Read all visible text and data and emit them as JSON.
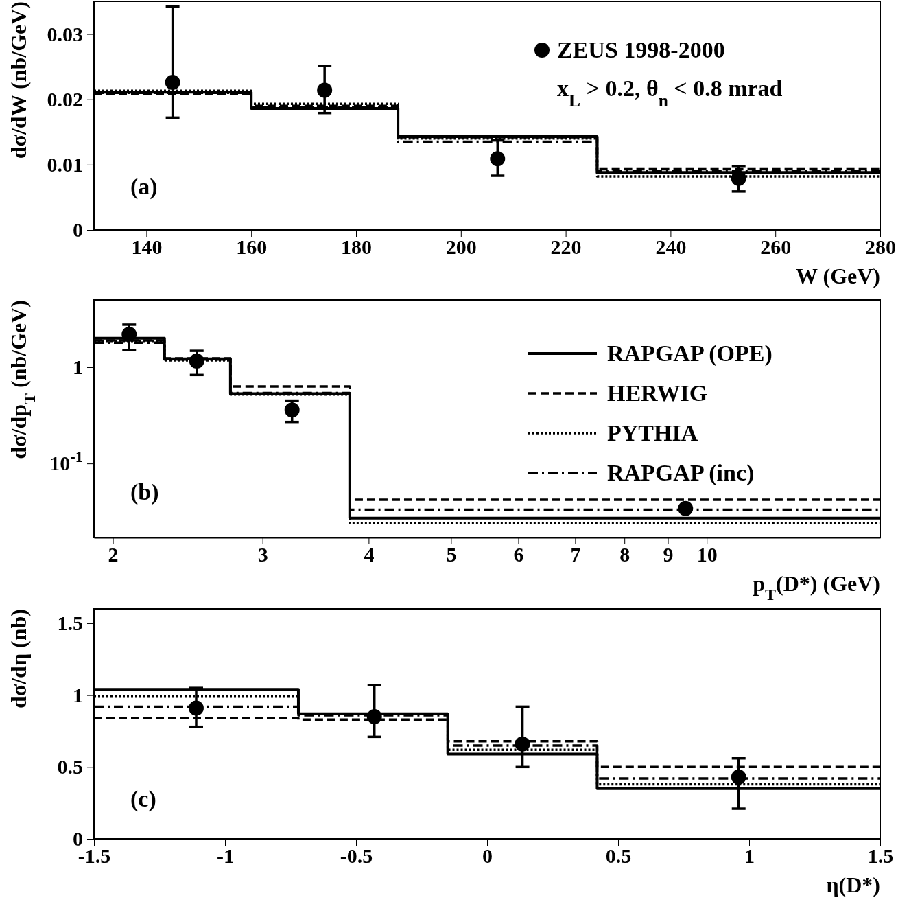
{
  "chart_data": [
    {
      "type": "step",
      "xlabel": "W (GeV)",
      "ylabel": "dσ/dW (nb/GeV)",
      "xlim": [
        130,
        280
      ],
      "ylim": [
        0,
        0.035
      ],
      "xticks": [
        140,
        160,
        180,
        200,
        220,
        240,
        260,
        280
      ],
      "yticks": [
        0,
        0.01,
        0.02,
        0.03
      ],
      "grid": false,
      "legend": "top right",
      "annotations": [
        "x$_{L}$ > 0.2, θ$_{n}$ < 0.8 mrad",
        "(a)"
      ],
      "series": [
        {
          "type": "scatter",
          "name": "ZEUS 1998-2000",
          "color": "#000000",
          "marker": "circle",
          "x": [
            145,
            174,
            207,
            253
          ],
          "values": [
            0.0226,
            0.0214,
            0.0109,
            0.0079
          ],
          "errors": [
            [
              0.0172,
              0.0342
            ],
            [
              0.0179,
              0.0251
            ],
            [
              0.0083,
              0.0137
            ],
            [
              0.0059,
              0.0097
            ]
          ]
        },
        {
          "color": "#000000",
          "line_style": "solid",
          "marker": "none",
          "x": [
            130,
            160,
            188,
            226,
            280
          ],
          "values": [
            0.0211,
            0.0186,
            0.0143,
            0.0088,
            0.0088
          ]
        },
        {
          "color": "#000000",
          "line_style": "dashed",
          "marker": "none",
          "x": [
            130,
            160,
            188,
            226,
            280
          ],
          "values": [
            0.0208,
            0.019,
            0.0142,
            0.0093,
            0.0093
          ]
        },
        {
          "color": "#000000",
          "line_style": "dotted",
          "marker": "none",
          "x": [
            130,
            160,
            188,
            226,
            280
          ],
          "values": [
            0.0213,
            0.0193,
            0.014,
            0.0082,
            0.0082
          ]
        },
        {
          "color": "#000000",
          "line_style": "dashdot",
          "marker": "none",
          "x": [
            130,
            160,
            188,
            226,
            280
          ],
          "values": [
            0.021,
            0.0188,
            0.0135,
            0.009,
            0.009
          ]
        }
      ]
    },
    {
      "type": "step",
      "xlabel": "p$_{T}$(D*)   (GeV)",
      "ylabel": "dσ/dp$_{T}$ (nb/GeV)",
      "log": "xy",
      "xlim": [
        1.9,
        16
      ],
      "ylim": [
        0.017,
        5
      ],
      "xticks": [
        2,
        3,
        4,
        5,
        6,
        7,
        8,
        9,
        10
      ],
      "yticks": [
        {
          "value": 0.1,
          "label": "10$^{-1}$"
        },
        1
      ],
      "grid": false,
      "legend": "right",
      "annotations": [
        "(b)"
      ],
      "series": [
        {
          "type": "scatter",
          "color": "#000000",
          "marker": "circle",
          "x": [
            2.09,
            2.51,
            3.25,
            9.44
          ],
          "values": [
            2.2,
            1.16,
            0.36,
            0.034
          ],
          "errors": [
            [
              1.51,
              2.77
            ],
            [
              0.83,
              1.48
            ],
            [
              0.27,
              0.45
            ],
            null
          ]
        },
        {
          "name": "RAPGAP (OPE)",
          "color": "#000000",
          "line_style": "solid",
          "marker": "none",
          "x": [
            1.9,
            2.3,
            2.75,
            3.8,
            16
          ],
          "values": [
            2.0,
            1.22,
            0.53,
            0.027,
            0.027
          ]
        },
        {
          "name": "HERWIG",
          "color": "#000000",
          "line_style": "dashed",
          "marker": "none",
          "x": [
            1.9,
            2.3,
            2.75,
            3.8,
            16
          ],
          "values": [
            1.9,
            1.24,
            0.63,
            0.042,
            0.042
          ]
        },
        {
          "name": "PYTHIA",
          "color": "#000000",
          "line_style": "dotted",
          "marker": "none",
          "x": [
            1.9,
            2.3,
            2.75,
            3.8,
            16
          ],
          "values": [
            1.87,
            1.18,
            0.52,
            0.024,
            0.024
          ]
        },
        {
          "name": "RAPGAP (inc)",
          "color": "#000000",
          "line_style": "dashdot",
          "marker": "none",
          "x": [
            1.9,
            2.3,
            2.75,
            3.8,
            16
          ],
          "values": [
            1.8,
            1.2,
            0.54,
            0.033,
            0.033
          ]
        }
      ]
    },
    {
      "type": "step",
      "xlabel": "η(D*)",
      "ylabel": "dσ/dη (nb)",
      "xlim": [
        -1.5,
        1.5
      ],
      "ylim": [
        0,
        1.6
      ],
      "xticks": [
        -1.5,
        -1,
        -0.5,
        0,
        0.5,
        1,
        1.5
      ],
      "yticks": [
        0,
        0.5,
        1,
        1.5
      ],
      "grid": false,
      "annotations": [
        "(c)"
      ],
      "series": [
        {
          "type": "scatter",
          "color": "#000000",
          "marker": "circle",
          "x": [
            -1.11,
            -0.43,
            0.135,
            0.96
          ],
          "values": [
            0.91,
            0.85,
            0.66,
            0.43
          ],
          "errors": [
            [
              0.78,
              1.05
            ],
            [
              0.71,
              1.07
            ],
            [
              0.5,
              0.92
            ],
            [
              0.21,
              0.56
            ]
          ]
        },
        {
          "color": "#000000",
          "line_style": "solid",
          "marker": "none",
          "x": [
            -1.5,
            -0.72,
            -0.15,
            0.42,
            1.5
          ],
          "values": [
            1.04,
            0.87,
            0.59,
            0.35,
            0.35
          ]
        },
        {
          "color": "#000000",
          "line_style": "dashed",
          "marker": "none",
          "x": [
            -1.5,
            -0.72,
            -0.15,
            0.42,
            1.5
          ],
          "values": [
            0.84,
            0.83,
            0.68,
            0.5,
            0.5
          ]
        },
        {
          "color": "#000000",
          "line_style": "dotted",
          "marker": "none",
          "x": [
            -1.5,
            -0.72,
            -0.15,
            0.42,
            1.5
          ],
          "values": [
            0.99,
            0.87,
            0.62,
            0.38,
            0.38
          ]
        },
        {
          "color": "#000000",
          "line_style": "dashdot",
          "marker": "none",
          "x": [
            -1.5,
            -0.72,
            -0.15,
            0.42,
            1.5
          ],
          "values": [
            0.92,
            0.86,
            0.65,
            0.42,
            0.42
          ]
        }
      ]
    }
  ]
}
